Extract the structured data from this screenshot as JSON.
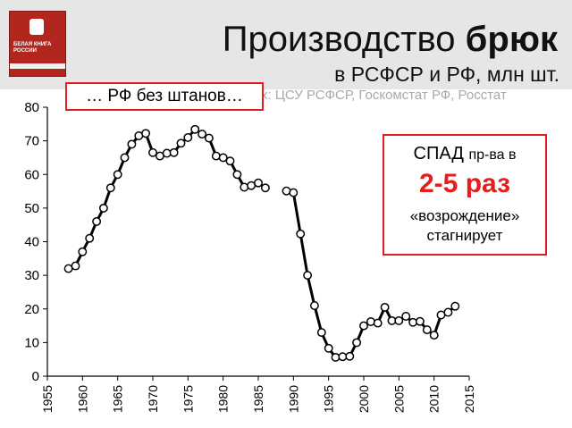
{
  "header": {
    "title_regular": "Производство",
    "title_bold": "брюк",
    "subtitle": "в РСФСР и РФ, млн шт.",
    "source": "х: ЦСУ РСФСР, Госкомстат РФ, Росстат",
    "book_cover": {
      "title": "БЕЛАЯ КНИГА РОССИИ",
      "colors": {
        "cover": "#b3261e"
      }
    }
  },
  "callout": {
    "text": "… РФ без штанов…"
  },
  "info_box": {
    "line1_a": "СПАД",
    "line1_b": "пр-ва в",
    "line2": "2-5 раз",
    "line3": "«возрождение»",
    "line4": "стагнирует"
  },
  "colors": {
    "accent_red": "#e41e1e",
    "series": "#000000"
  },
  "chart_data": {
    "type": "line",
    "xlim": [
      1955,
      2015
    ],
    "ylim": [
      0,
      80
    ],
    "x_ticks": [
      "1955",
      "1960",
      "1965",
      "1970",
      "1975",
      "1980",
      "1985",
      "1990",
      "1995",
      "2000",
      "2005",
      "2010",
      "2015"
    ],
    "y_ticks": [
      "0",
      "10",
      "20",
      "30",
      "40",
      "50",
      "60",
      "70",
      "80"
    ],
    "grid": false,
    "series": [
      {
        "segments": [
          [
            [
              1958,
              32
            ],
            [
              1959,
              32.8
            ],
            [
              1960,
              37
            ],
            [
              1961,
              41
            ],
            [
              1962,
              46
            ],
            [
              1963,
              50
            ],
            [
              1964,
              56
            ],
            [
              1965,
              60
            ],
            [
              1966,
              65
            ],
            [
              1967,
              69
            ],
            [
              1968,
              71.5
            ],
            [
              1969,
              72.2
            ],
            [
              1970,
              66.5
            ],
            [
              1971,
              65.5
            ],
            [
              1972,
              66.3
            ],
            [
              1973,
              66.5
            ],
            [
              1974,
              69.3
            ],
            [
              1975,
              71
            ],
            [
              1976,
              73.4
            ],
            [
              1977,
              72
            ],
            [
              1978,
              70.8
            ],
            [
              1979,
              65.5
            ],
            [
              1980,
              65
            ],
            [
              1981,
              64
            ],
            [
              1982,
              60
            ],
            [
              1983,
              56.2
            ],
            [
              1984,
              56.7
            ],
            [
              1985,
              57.5
            ],
            [
              1986,
              56
            ]
          ],
          [
            [
              1989,
              55.1
            ],
            [
              1990,
              54.6
            ],
            [
              1991,
              42.3
            ],
            [
              1992,
              30
            ],
            [
              1993,
              21
            ],
            [
              1994,
              13
            ],
            [
              1995,
              8.3
            ],
            [
              1996,
              5.6
            ],
            [
              1997,
              5.8
            ],
            [
              1998,
              5.9
            ],
            [
              1999,
              10
            ],
            [
              2000,
              15
            ],
            [
              2001,
              16.2
            ],
            [
              2002,
              15.8
            ],
            [
              2003,
              20.5
            ],
            [
              2004,
              16.5
            ],
            [
              2005,
              16.5
            ],
            [
              2006,
              17.8
            ],
            [
              2007,
              16
            ],
            [
              2008,
              16.3
            ],
            [
              2009,
              13.8
            ],
            [
              2010,
              12.2
            ],
            [
              2011,
              18.2
            ],
            [
              2012,
              19
            ],
            [
              2013,
              20.8
            ]
          ]
        ]
      }
    ]
  }
}
